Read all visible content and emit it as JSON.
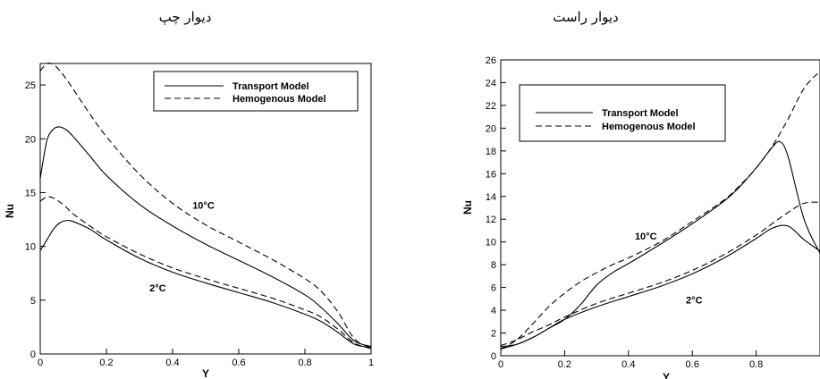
{
  "chart_data": [
    {
      "type": "line",
      "title": "دیوار چپ",
      "xlabel": "Y",
      "ylabel": "Nu",
      "xlim": [
        0,
        1
      ],
      "ylim": [
        0,
        27
      ],
      "xticks": [
        0,
        0.2,
        0.4,
        0.6,
        0.8,
        1
      ],
      "xtick_labels": [
        "0",
        "0.2",
        "0.4",
        "0.6",
        "0.8",
        "1"
      ],
      "yticks": [
        0,
        5,
        10,
        15,
        20,
        25
      ],
      "ytick_labels": [
        "0",
        "5",
        "10",
        "15",
        "20",
        "25"
      ],
      "legend": {
        "placement": "top-right",
        "entries": [
          {
            "label": "Transport Model",
            "style": "solid"
          },
          {
            "label": "Hemogenous Model",
            "style": "dashed"
          }
        ]
      },
      "annotations": [
        {
          "text": "10°C",
          "x": 0.46,
          "y": 13.5
        },
        {
          "text": "2°C",
          "x": 0.33,
          "y": 5.8
        }
      ],
      "series": [
        {
          "style": "solid",
          "group": "10°C",
          "x": [
            0,
            0.02,
            0.04,
            0.06,
            0.08,
            0.1,
            0.15,
            0.2,
            0.3,
            0.4,
            0.5,
            0.6,
            0.7,
            0.8,
            0.85,
            0.9,
            0.95,
            1.0
          ],
          "y": [
            16.3,
            19.8,
            20.9,
            21.1,
            20.8,
            20.2,
            18.4,
            16.6,
            13.9,
            11.9,
            10.2,
            8.7,
            7.2,
            5.5,
            4.3,
            2.8,
            1.2,
            0.7
          ]
        },
        {
          "style": "dashed",
          "group": "10°C",
          "x": [
            0,
            0.02,
            0.04,
            0.06,
            0.08,
            0.1,
            0.15,
            0.2,
            0.3,
            0.4,
            0.5,
            0.6,
            0.7,
            0.8,
            0.85,
            0.9,
            0.95,
            1.0
          ],
          "y": [
            26.3,
            27.0,
            26.9,
            26.3,
            25.5,
            24.6,
            22.3,
            20.2,
            16.7,
            14.0,
            12.0,
            10.4,
            8.8,
            7.0,
            5.8,
            3.9,
            1.4,
            0.6
          ]
        },
        {
          "style": "solid",
          "group": "2°C",
          "x": [
            0,
            0.02,
            0.04,
            0.06,
            0.08,
            0.1,
            0.15,
            0.2,
            0.3,
            0.4,
            0.5,
            0.6,
            0.7,
            0.8,
            0.85,
            0.9,
            0.95,
            1.0
          ],
          "y": [
            9.6,
            10.6,
            11.6,
            12.2,
            12.4,
            12.3,
            11.6,
            10.6,
            8.9,
            7.6,
            6.6,
            5.7,
            4.8,
            3.7,
            3.0,
            2.0,
            0.9,
            0.6
          ]
        },
        {
          "style": "dashed",
          "group": "2°C",
          "x": [
            0,
            0.02,
            0.04,
            0.06,
            0.08,
            0.1,
            0.15,
            0.2,
            0.3,
            0.4,
            0.5,
            0.6,
            0.7,
            0.8,
            0.85,
            0.9,
            0.95,
            1.0
          ],
          "y": [
            14.2,
            14.6,
            14.5,
            14.1,
            13.6,
            13.0,
            11.9,
            10.9,
            9.3,
            8.0,
            7.0,
            6.1,
            5.2,
            4.1,
            3.4,
            2.3,
            1.0,
            0.5
          ]
        }
      ]
    },
    {
      "type": "line",
      "title": "دیوار راست",
      "xlabel": "Y",
      "ylabel": "Nu",
      "xlim": [
        0,
        1
      ],
      "ylim": [
        0,
        26
      ],
      "xticks": [
        0,
        0.2,
        0.4,
        0.6,
        0.8
      ],
      "xtick_labels": [
        "0",
        "0.2",
        "0.4",
        "0.6",
        "0.8"
      ],
      "yticks": [
        0,
        2,
        4,
        6,
        8,
        10,
        12,
        14,
        16,
        18,
        20,
        22,
        24,
        26
      ],
      "ytick_labels": [
        "0",
        "2",
        "4",
        "6",
        "8",
        "10",
        "12",
        "14",
        "16",
        "18",
        "20",
        "22",
        "24",
        "26"
      ],
      "legend": {
        "placement": "top-left",
        "entries": [
          {
            "label": "Transport Model",
            "style": "solid"
          },
          {
            "label": "Hemogenous Model",
            "style": "dashed"
          }
        ]
      },
      "annotations": [
        {
          "text": "10°C",
          "x": 0.42,
          "y": 10.2
        },
        {
          "text": "2°C",
          "x": 0.58,
          "y": 4.6
        }
      ],
      "series": [
        {
          "style": "solid",
          "group": "10°C",
          "x": [
            0,
            0.05,
            0.1,
            0.15,
            0.2,
            0.25,
            0.3,
            0.35,
            0.4,
            0.5,
            0.6,
            0.7,
            0.75,
            0.8,
            0.85,
            0.875,
            0.9,
            0.95,
            1.0
          ],
          "y": [
            0.8,
            1.0,
            1.6,
            2.4,
            3.2,
            4.5,
            6.2,
            7.3,
            8.1,
            9.8,
            11.6,
            13.6,
            14.9,
            16.5,
            18.3,
            18.8,
            17.5,
            12.0,
            9.0
          ]
        },
        {
          "style": "dashed",
          "group": "10°C",
          "x": [
            0,
            0.05,
            0.1,
            0.15,
            0.2,
            0.25,
            0.3,
            0.35,
            0.4,
            0.5,
            0.6,
            0.7,
            0.75,
            0.8,
            0.85,
            0.9,
            0.95,
            1.0
          ],
          "y": [
            0.6,
            1.4,
            2.8,
            4.3,
            5.5,
            6.5,
            7.3,
            8.0,
            8.6,
            10.0,
            11.8,
            13.7,
            15.0,
            16.5,
            18.4,
            20.8,
            23.5,
            25.0
          ]
        },
        {
          "style": "solid",
          "group": "2°C",
          "x": [
            0,
            0.05,
            0.1,
            0.15,
            0.2,
            0.3,
            0.4,
            0.5,
            0.6,
            0.7,
            0.8,
            0.85,
            0.9,
            0.95,
            1.0
          ],
          "y": [
            0.6,
            1.0,
            1.6,
            2.4,
            3.2,
            4.3,
            5.2,
            6.1,
            7.2,
            8.6,
            10.3,
            11.2,
            11.4,
            10.2,
            9.2
          ]
        },
        {
          "style": "dashed",
          "group": "2°C",
          "x": [
            0,
            0.05,
            0.1,
            0.15,
            0.2,
            0.3,
            0.4,
            0.5,
            0.6,
            0.7,
            0.8,
            0.85,
            0.9,
            0.95,
            1.0
          ],
          "y": [
            0.9,
            1.4,
            2.1,
            2.7,
            3.4,
            4.6,
            5.5,
            6.4,
            7.5,
            8.9,
            10.6,
            11.6,
            12.6,
            13.4,
            13.5
          ]
        }
      ]
    }
  ]
}
